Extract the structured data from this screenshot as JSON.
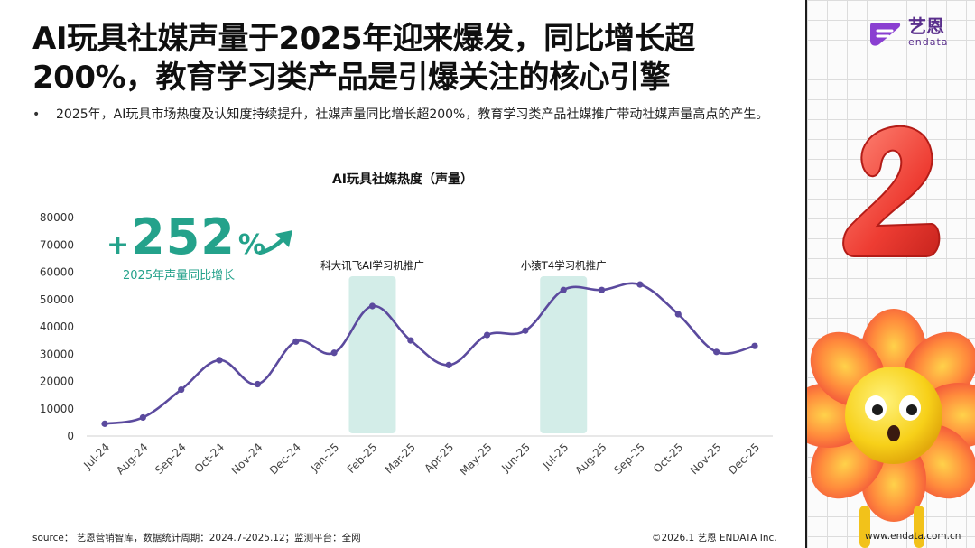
{
  "header": {
    "title": "AI玩具社媒声量于2025年迎来爆发，同比增长超200%，教育学习类产品是引爆关注的核心引擎",
    "bullet_symbol": "•",
    "bullet": "2025年，AI玩具市场热度及认知度持续提升，社媒声量同比增长超200%，教育学习类产品社媒推广带动社媒声量高点的产生。"
  },
  "logo": {
    "name_cn": "艺恩",
    "name_en": "endata"
  },
  "stat": {
    "plus": "+",
    "value": "252",
    "unit": "%",
    "label": "2025年声量同比增长"
  },
  "chart_data": {
    "type": "line",
    "title": "AI玩具社媒热度（声量）",
    "categories": [
      "Jul-24",
      "Aug-24",
      "Sep-24",
      "Oct-24",
      "Nov-24",
      "Dec-24",
      "Jan-25",
      "Feb-25",
      "Mar-25",
      "Apr-25",
      "May-25",
      "Jun-25",
      "Jul-25",
      "Aug-25",
      "Sep-25",
      "Oct-25",
      "Nov-25",
      "Dec-25"
    ],
    "values": [
      4500,
      6800,
      17000,
      27800,
      19000,
      34600,
      30500,
      47600,
      35000,
      26000,
      37000,
      38600,
      53500,
      53500,
      55500,
      44600,
      30800,
      33000
    ],
    "ylim": [
      0,
      80000
    ],
    "yticks": [
      "0",
      "10000",
      "20000",
      "30000",
      "40000",
      "50000",
      "60000",
      "70000",
      "80000"
    ],
    "highlights": [
      {
        "category": "Feb-25",
        "label": "科大讯飞AI学习机推广"
      },
      {
        "category": "Jul-25",
        "label": "小猿T4学习机推广"
      }
    ],
    "series_color": "#5b4a9e",
    "highlight_color": "#d3ede8",
    "xlabel": "",
    "ylabel": ""
  },
  "footer": {
    "source": "source： 艺恩营销智库，数据统计周期：2024.7-2025.12；监测平台：全网",
    "copyright": "©2026.1  艺恩 ENDATA Inc.",
    "url": "www.endata.com.cn"
  },
  "colors": {
    "accent": "#24a28b",
    "brand": "#5a2f8c",
    "line": "#5b4a9e"
  }
}
